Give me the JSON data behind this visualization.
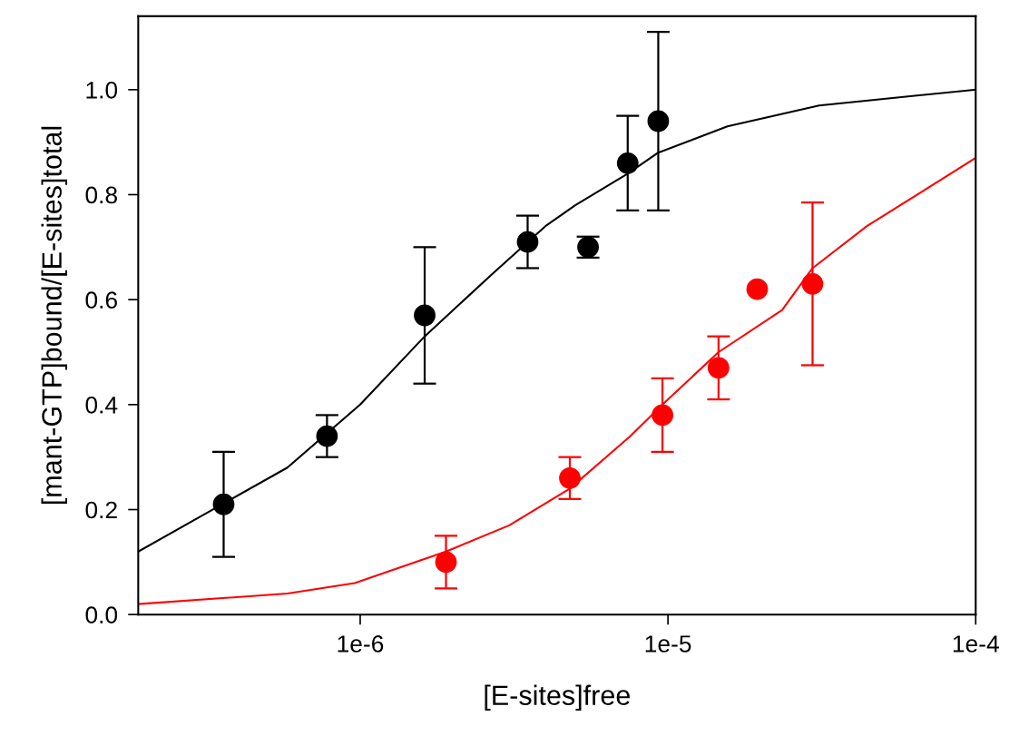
{
  "chart_data": {
    "type": "scatter",
    "xlabel": "[E-sites]free",
    "ylabel": "[mant-GTP]bound/[E-sites]total",
    "log": "x",
    "grid": false,
    "legend": false,
    "marker": "circle",
    "xlim": [
      1.9e-07,
      0.0001
    ],
    "xticks": [
      {
        "value": 1e-06,
        "label": "1e-6"
      },
      {
        "value": 1e-05,
        "label": "1e-5"
      },
      {
        "value": 0.0001,
        "label": "1e-4"
      }
    ],
    "ylim": [
      0,
      1.14
    ],
    "yticks": [
      {
        "value": 0,
        "label": "0.0"
      },
      {
        "value": 0.2,
        "label": "0.2"
      },
      {
        "value": 0.4,
        "label": "0.4"
      },
      {
        "value": 0.6,
        "label": "0.6"
      },
      {
        "value": 0.8,
        "label": "0.8"
      },
      {
        "value": 1.0,
        "label": "1.0"
      }
    ],
    "series": [
      {
        "color": "#000000",
        "x": [
          3.6e-07,
          7.8e-07,
          1.62e-06,
          3.5e-06,
          5.5e-06,
          7.4e-06,
          9.3e-06
        ],
        "values": [
          0.21,
          0.34,
          0.57,
          0.71,
          0.7,
          0.86,
          0.94
        ],
        "errors": [
          0.1,
          0.04,
          0.13,
          0.05,
          0.02,
          0.09,
          0.17
        ]
      },
      {
        "color": "#ff0000",
        "x": [
          1.9e-06,
          4.8e-06,
          9.6e-06,
          1.46e-05,
          1.95e-05,
          2.95e-05
        ],
        "values": [
          0.1,
          0.26,
          0.38,
          0.47,
          0.62,
          0.63
        ],
        "errors": [
          0.05,
          0.04,
          0.07,
          0.06,
          null,
          0.155
        ]
      },
      {
        "type": "line",
        "color": "#000000",
        "marker": "none",
        "x": [
          1.9e-07,
          5.8e-07,
          1e-06,
          1.62e-06,
          2.7e-06,
          4e-06,
          5e-06,
          7.4e-06,
          9.3e-06,
          1.56e-05,
          3.1e-05,
          0.0001
        ],
        "values": [
          0.12,
          0.28,
          0.4,
          0.53,
          0.65,
          0.74,
          0.78,
          0.84,
          0.88,
          0.93,
          0.97,
          1.0
        ]
      },
      {
        "type": "line",
        "color": "#ff0000",
        "marker": "none",
        "x": [
          1.9e-07,
          5.8e-07,
          9.6e-07,
          1.9e-06,
          3.05e-06,
          4.8e-06,
          7.55e-06,
          9.6e-06,
          1.46e-05,
          2.35e-05,
          2.95e-05,
          4.43e-05,
          0.0001
        ],
        "values": [
          0.02,
          0.04,
          0.06,
          0.12,
          0.17,
          0.24,
          0.34,
          0.4,
          0.5,
          0.58,
          0.66,
          0.74,
          0.87
        ]
      }
    ]
  }
}
